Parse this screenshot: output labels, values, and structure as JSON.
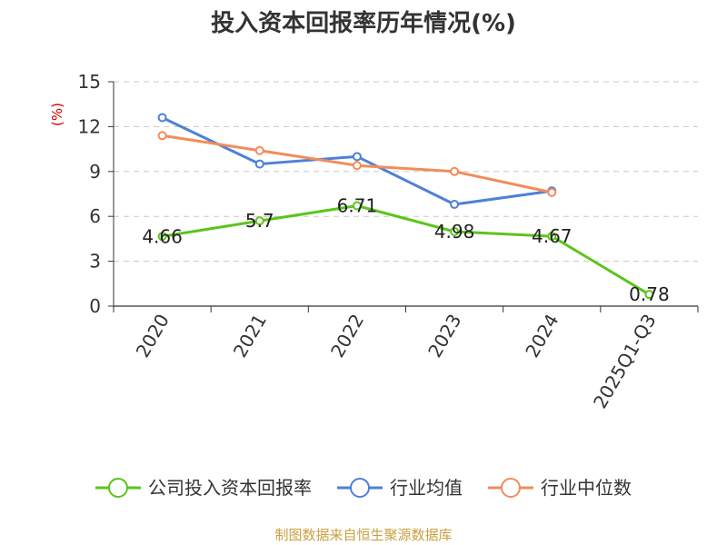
{
  "chart_data": {
    "type": "line",
    "title": "投入资本回报率历年情况(%)",
    "unit_label": "(%)",
    "categories": [
      "2020",
      "2021",
      "2022",
      "2023",
      "2024",
      "2025Q1-Q3"
    ],
    "ylim": [
      0,
      15
    ],
    "yticks": [
      "0",
      "3",
      "6",
      "9",
      "12",
      "15"
    ],
    "grid": true,
    "legend_position": "bottom",
    "series": [
      {
        "name": "公司投入资本回报率",
        "color": "#5cc41c",
        "values": [
          4.66,
          5.7,
          6.71,
          4.98,
          4.67,
          0.78
        ],
        "labels": [
          "4.66",
          "5.7",
          "6.71",
          "4.98",
          "4.67",
          "0.78"
        ]
      },
      {
        "name": "行业均值",
        "color": "#4f80d8",
        "values": [
          12.6,
          9.5,
          10.0,
          6.8,
          7.7,
          null
        ]
      },
      {
        "name": "行业中位数",
        "color": "#f28c5a",
        "values": [
          11.4,
          10.4,
          9.4,
          9.0,
          7.6,
          null
        ]
      }
    ],
    "source": "制图数据来自恒生聚源数据库"
  }
}
